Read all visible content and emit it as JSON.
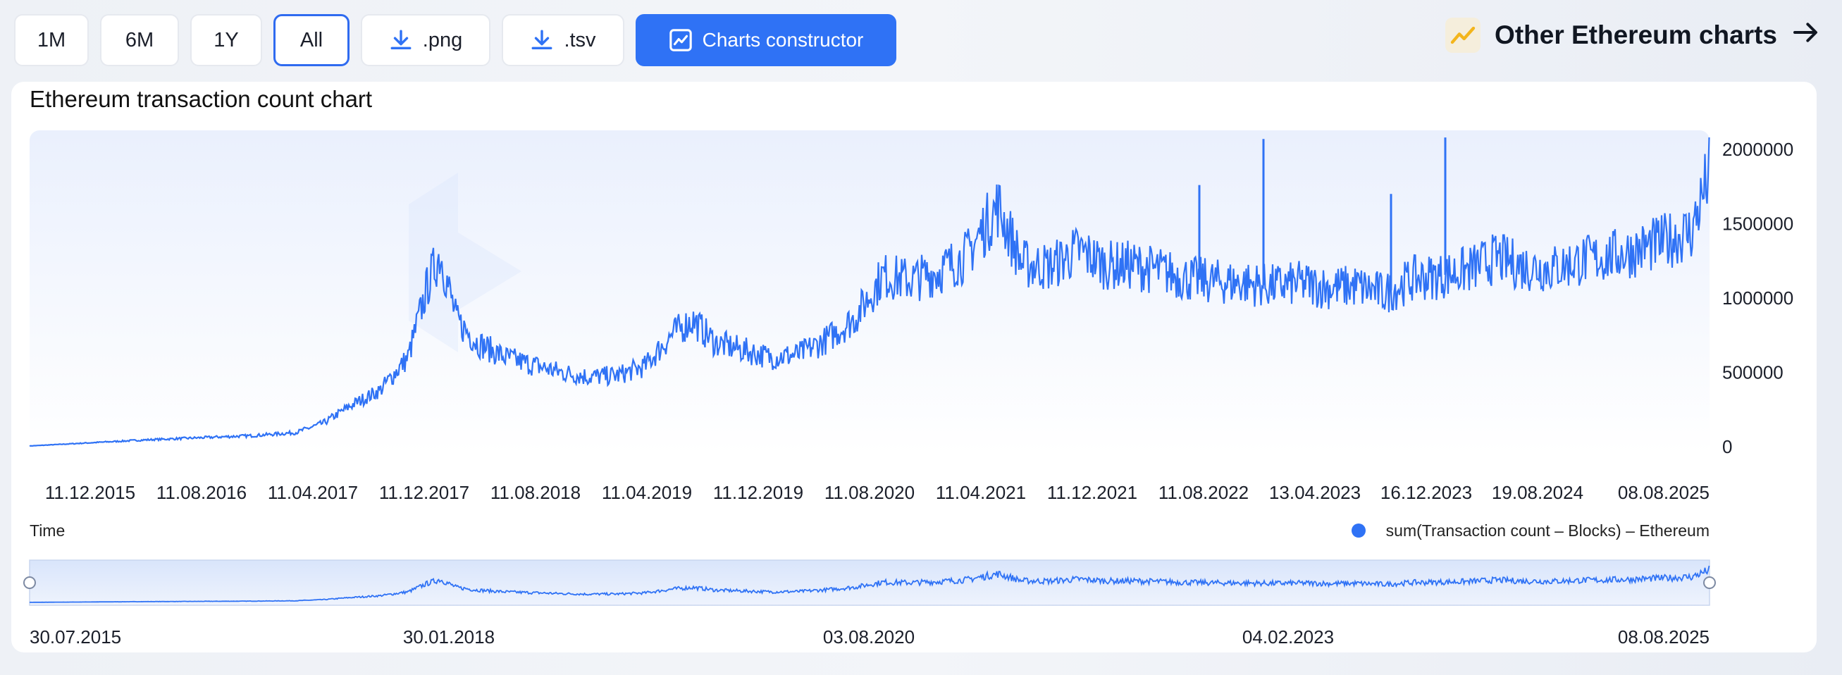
{
  "toolbar": {
    "ranges": [
      "1M",
      "6M",
      "1Y",
      "All"
    ],
    "active_range": "All",
    "png_label": ".png",
    "tsv_label": ".tsv",
    "constructor_label": "Charts constructor"
  },
  "header": {
    "other_charts_label": "Other Ethereum charts"
  },
  "chart_data": {
    "type": "line",
    "title": "Ethereum transaction count chart",
    "xlabel": "Time",
    "ylabel": "",
    "legend": "sum(Transaction count – Blocks) – Ethereum",
    "legend_position": "bottom-right",
    "y_ticks": [
      "2000000",
      "1500000",
      "1000000",
      "500000",
      "0"
    ],
    "ylim": [
      0,
      2100000
    ],
    "x_ticks": [
      "11.12.2015",
      "11.08.2016",
      "11.04.2017",
      "11.12.2017",
      "11.08.2018",
      "11.04.2019",
      "11.12.2019",
      "11.08.2020",
      "11.04.2021",
      "11.12.2021",
      "11.08.2022",
      "13.04.2023",
      "16.12.2023",
      "19.08.2024",
      "08.08.2025"
    ],
    "navigator_ticks": [
      "30.07.2015",
      "30.01.2018",
      "03.08.2020",
      "04.02.2023",
      "08.08.2025"
    ],
    "xlim": [
      "2015-07-30",
      "2025-08-08"
    ],
    "color": "#2f72f5",
    "series": [
      {
        "x": [
          "2015-07-30",
          "2015-12-01",
          "2016-04-01",
          "2016-08-01",
          "2016-12-01",
          "2017-03-01",
          "2017-05-01",
          "2017-07-01",
          "2017-09-01",
          "2017-11-01",
          "2017-12-15",
          "2018-01-10",
          "2018-02-15",
          "2018-04-01",
          "2018-06-01",
          "2018-08-01",
          "2018-10-01",
          "2018-12-01",
          "2019-02-01",
          "2019-04-01",
          "2019-06-01",
          "2019-07-15",
          "2019-09-01",
          "2019-11-01",
          "2020-01-01",
          "2020-03-01",
          "2020-05-01",
          "2020-07-01",
          "2020-09-01",
          "2020-11-01",
          "2021-01-01",
          "2021-03-01",
          "2021-05-10",
          "2021-07-01",
          "2021-09-01",
          "2021-11-01",
          "2022-01-01",
          "2022-03-01",
          "2022-05-01",
          "2022-07-01",
          "2022-09-01",
          "2022-11-01",
          "2023-01-01",
          "2023-03-01",
          "2023-05-01",
          "2023-07-01",
          "2023-09-01",
          "2023-11-01",
          "2024-01-01",
          "2024-03-01",
          "2024-05-01",
          "2024-07-01",
          "2024-09-01",
          "2024-11-01",
          "2025-01-01",
          "2025-03-01",
          "2025-05-01",
          "2025-07-01",
          "2025-08-08"
        ],
        "y": [
          5000,
          25000,
          45000,
          60000,
          75000,
          95000,
          160000,
          280000,
          380000,
          600000,
          1100000,
          1300000,
          850000,
          700000,
          600000,
          550000,
          500000,
          470000,
          480000,
          540000,
          760000,
          850000,
          700000,
          650000,
          600000,
          620000,
          720000,
          860000,
          1150000,
          1120000,
          1180000,
          1280000,
          1620000,
          1230000,
          1210000,
          1320000,
          1220000,
          1220000,
          1180000,
          1130000,
          1110000,
          1100000,
          1080000,
          1100000,
          1070000,
          1080000,
          1030000,
          1130000,
          1150000,
          1190000,
          1270000,
          1210000,
          1200000,
          1250000,
          1280000,
          1320000,
          1380000,
          1450000,
          1850000
        ]
      }
    ]
  }
}
